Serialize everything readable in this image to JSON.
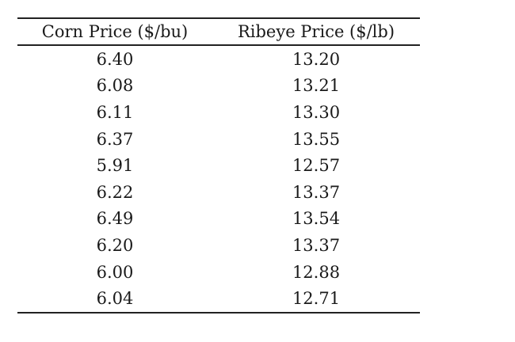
{
  "table": {
    "columns": [
      "Corn Price ($/bu)",
      "Ribeye Price ($/lb)"
    ],
    "rows": [
      [
        "6.40",
        "13.20"
      ],
      [
        "6.08",
        "13.21"
      ],
      [
        "6.11",
        "13.30"
      ],
      [
        "6.37",
        "13.55"
      ],
      [
        "5.91",
        "12.57"
      ],
      [
        "6.22",
        "13.37"
      ],
      [
        "6.49",
        "13.54"
      ],
      [
        "6.20",
        "13.37"
      ],
      [
        "6.00",
        "12.88"
      ],
      [
        "6.04",
        "12.71"
      ]
    ]
  },
  "colors": {
    "rule": "#222222",
    "text": "#1a1a1a",
    "background": "#ffffff"
  }
}
